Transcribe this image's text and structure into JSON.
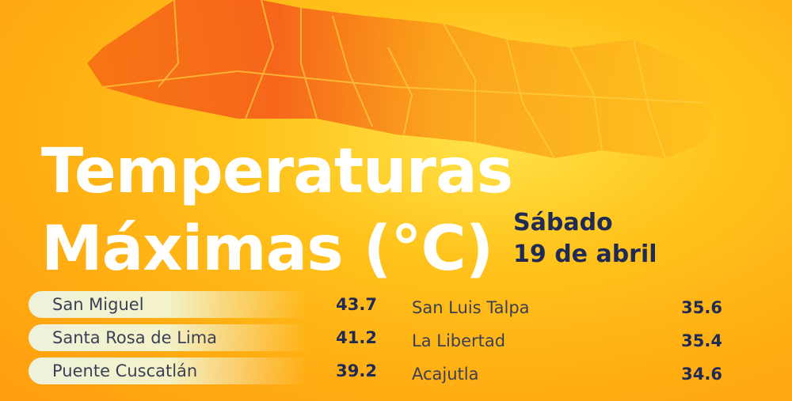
{
  "title": {
    "line1": "Temperaturas",
    "line2": "Máximas (°C)"
  },
  "date": {
    "day": "Sábado",
    "date": "19 de abril"
  },
  "left_list": [
    {
      "name": "San Miguel",
      "value": "43.7"
    },
    {
      "name": "Santa Rosa de Lima",
      "value": "41.2"
    },
    {
      "name": "Puente Cuscatlán",
      "value": "39.2"
    }
  ],
  "right_list": [
    {
      "name": "San Luis Talpa",
      "value": "35.6"
    },
    {
      "name": "La Libertad",
      "value": "35.4"
    },
    {
      "name": "Acajutla",
      "value": "34.6"
    }
  ],
  "colors": {
    "hot": "#f25a10",
    "title": "#ffffff",
    "text_dark": "#1f2a55"
  }
}
